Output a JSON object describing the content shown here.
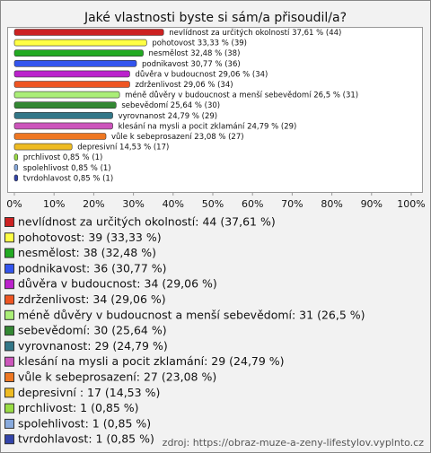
{
  "chart_data": {
    "type": "hbar",
    "title": "Jaké vlastnosti byste si sám/a přisoudil/a?",
    "values": [
      37.61,
      33.33,
      32.48,
      30.77,
      29.06,
      29.06,
      26.5,
      25.64,
      24.79,
      24.79,
      23.08,
      14.53,
      0.85,
      0.85,
      0.85
    ],
    "value_labels": [
      "nevlídnost za určitých okolností 37,61 % (44)",
      "pohotovost 33,33 % (39)",
      "nesmělost 32,48 % (38)",
      "podnikavost 30,77 % (36)",
      "důvěra v budoucnost 29,06 % (34)",
      "zdrženlivost 29,06 % (34)",
      "méně důvěry v budoucnost a menší sebevědomí 26,5 % (31)",
      "sebevědomí 25,64 % (30)",
      "vyrovnanost 24,79 % (29)",
      "klesání na mysli a pocit zklamání 24,79 % (29)",
      "vůle k sebeprosazení 23,08 % (27)",
      "depresivní  14,53 % (17)",
      "prchlivost 0,85 % (1)",
      "spolehlivost 0,85 % (1)",
      "tvrdohlavost 0,85 % (1)"
    ],
    "legend_labels": [
      "nevlídnost za určitých okolností: 44 (37,61 %)",
      "pohotovost: 39 (33,33 %)",
      "nesmělost: 38 (32,48 %)",
      "podnikavost: 36 (30,77 %)",
      "důvěra v budoucnost: 34 (29,06 %)",
      "zdrženlivost: 34 (29,06 %)",
      "méně důvěry v budoucnost a menší sebevědomí: 31 (26,5 %)",
      "sebevědomí: 30 (25,64 %)",
      "vyrovnanost: 29 (24,79 %)",
      "klesání na mysli a pocit zklamání: 29 (24,79 %)",
      "vůle k sebeprosazení: 27 (23,08 %)",
      "depresivní : 17 (14,53 %)",
      "prchlivost: 1 (0,85 %)",
      "spolehlivost: 1 (0,85 %)",
      "tvrdohlavost: 1 (0,85 %)"
    ],
    "colors": [
      "#cc2222",
      "#ffff44",
      "#22aa22",
      "#3355ee",
      "#bb22cc",
      "#ee5522",
      "#aaee77",
      "#338833",
      "#337788",
      "#cc55bb",
      "#ee7722",
      "#eebb22",
      "#99dd44",
      "#88aadd",
      "#3344aa"
    ],
    "xlim": [
      0,
      100
    ],
    "xticks": [
      {
        "value": 0,
        "label": "0%"
      },
      {
        "value": 10,
        "label": "10%"
      },
      {
        "value": 20,
        "label": "20%"
      },
      {
        "value": 30,
        "label": "30%"
      },
      {
        "value": 40,
        "label": "40%"
      },
      {
        "value": 50,
        "label": "50%"
      },
      {
        "value": 60,
        "label": "60%"
      },
      {
        "value": 70,
        "label": "70%"
      },
      {
        "value": 80,
        "label": "80%"
      },
      {
        "value": 90,
        "label": "90%"
      },
      {
        "value": 100,
        "label": "100%"
      }
    ],
    "source": "zdroj: https://obraz-muze-a-zeny-lifestylov.vyplnto.cz"
  }
}
